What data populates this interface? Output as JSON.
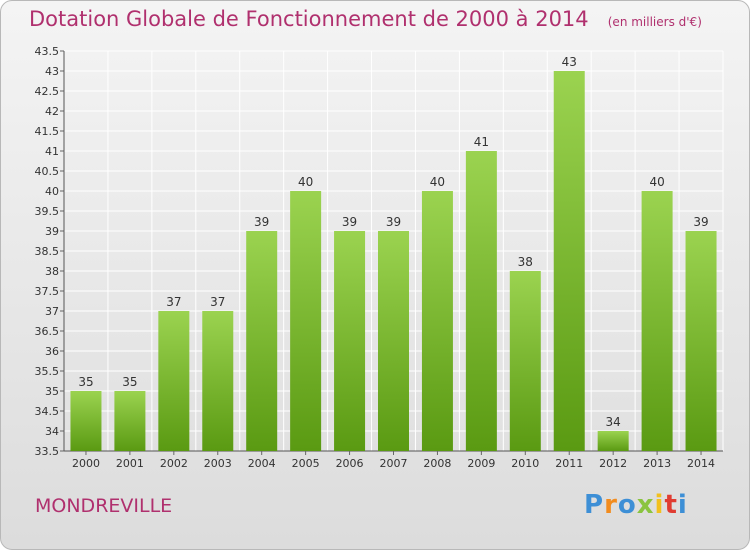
{
  "header": {
    "title": "Dotation Globale de Fonctionnement de 2000 à 2014",
    "unit": "(en milliers d'€)"
  },
  "footer": {
    "commune": "MONDREVILLE",
    "logo_text": "Proxiti"
  },
  "colors": {
    "accent": "#b0306e",
    "bar_top": "#9bd350",
    "bar_bottom": "#5a9a12",
    "logo_letters": [
      "#3d8fd6",
      "#f28c1e",
      "#3d8fd6",
      "#8ac43f",
      "#f2c01e",
      "#e03c31",
      "#3d8fd6"
    ]
  },
  "chart_data": {
    "type": "bar",
    "categories": [
      "2000",
      "2001",
      "2002",
      "2003",
      "2004",
      "2005",
      "2006",
      "2007",
      "2008",
      "2009",
      "2010",
      "2011",
      "2012",
      "2013",
      "2014"
    ],
    "values": [
      35,
      35,
      37,
      37,
      39,
      40,
      39,
      39,
      40,
      41,
      38,
      43,
      34,
      40,
      39
    ],
    "data_labels": [
      "35",
      "35",
      "37",
      "37",
      "39",
      "40",
      "39",
      "39",
      "40",
      "41",
      "38",
      "43",
      "34",
      "40",
      "39"
    ],
    "ylim": [
      33.5,
      43.5
    ],
    "yticks": [
      33.5,
      34,
      34.5,
      35,
      35.5,
      36,
      36.5,
      37,
      37.5,
      38,
      38.5,
      39,
      39.5,
      40,
      40.5,
      41,
      41.5,
      42,
      42.5,
      43,
      43.5
    ],
    "ytick_labels": [
      "33.5",
      "34",
      "34.5",
      "35",
      "35.5",
      "36",
      "36.5",
      "37",
      "37.5",
      "38",
      "38.5",
      "39",
      "39.5",
      "40",
      "40.5",
      "41",
      "41.5",
      "42",
      "42.5",
      "43",
      "43.5"
    ],
    "grid": true,
    "legend": "none"
  }
}
